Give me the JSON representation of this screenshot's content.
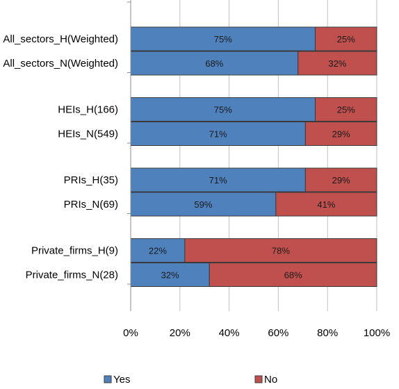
{
  "chart_data": {
    "type": "bar",
    "orientation": "horizontal",
    "stacked": "percent",
    "categories": [
      "All_sectors_H(Weighted)",
      "All_sectors_N(Weighted)",
      "HEIs_H(166)",
      "HEIs_N(549)",
      "PRIs_H(35)",
      "PRIs_N(69)",
      "Private_firms_H(9)",
      "Private_firms_N(28)"
    ],
    "series": [
      {
        "name": "Yes",
        "color": "#4f81bd",
        "values": [
          75,
          68,
          75,
          71,
          71,
          59,
          22,
          32
        ]
      },
      {
        "name": "No",
        "color": "#c0504d",
        "values": [
          25,
          32,
          25,
          29,
          29,
          41,
          78,
          68
        ]
      }
    ],
    "data_labels": [
      [
        "75%",
        "68%",
        "75%",
        "71%",
        "71%",
        "59%",
        "22%",
        "32%"
      ],
      [
        "25%",
        "32%",
        "25%",
        "29%",
        "29%",
        "41%",
        "78%",
        "68%"
      ]
    ],
    "xticks": [
      "0%",
      "20%",
      "40%",
      "60%",
      "80%",
      "100%"
    ],
    "xlim": [
      0,
      100
    ],
    "grid": true,
    "legend": "bottom",
    "title": "",
    "xlabel": "",
    "ylabel": ""
  }
}
